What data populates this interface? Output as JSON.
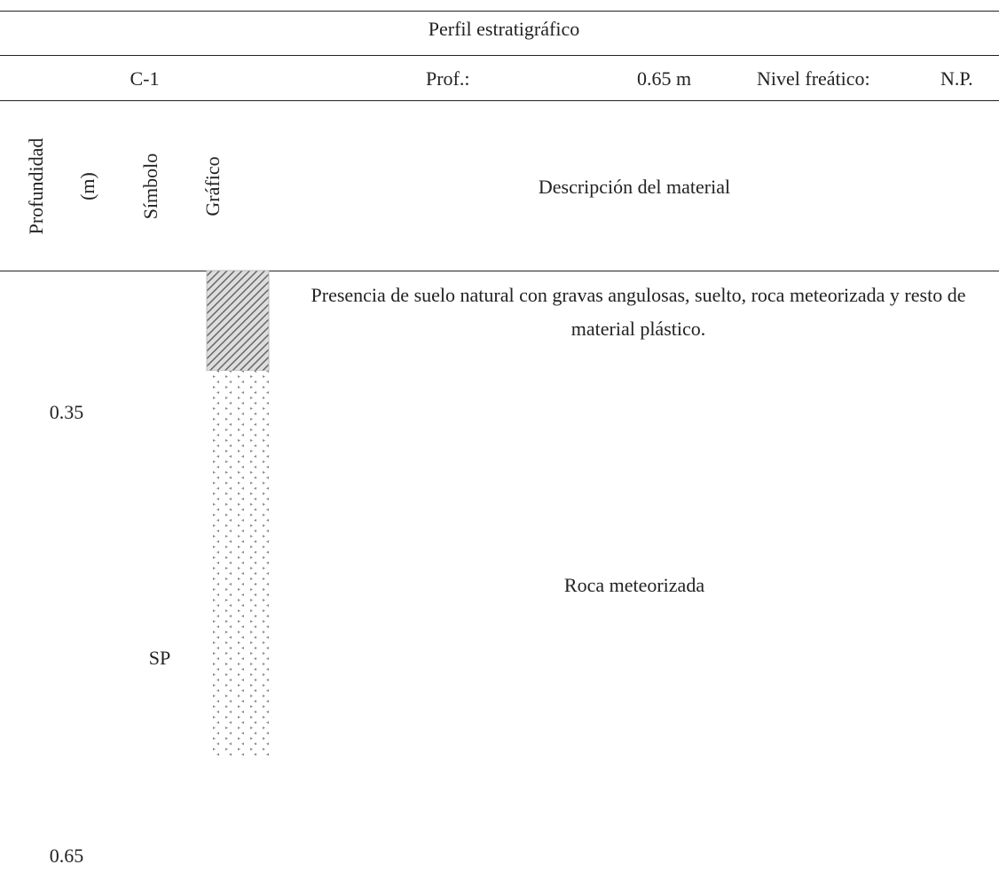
{
  "title": "Perfil estratigráfico",
  "info": {
    "boring": "C-1",
    "depth_label": "Prof.:",
    "depth_value": "0.65 m",
    "water_label": "Nivel freático:",
    "water_value": "N.P."
  },
  "headers": {
    "depth": "Profundidad (m)",
    "symbol": "Símbolo",
    "graphic": "Gráfico",
    "description": "Descripción del material"
  },
  "layers": [
    {
      "depth": "0.35",
      "description": "Presencia de suelo natural con gravas angulosas, suelto, roca meteorizada y resto de material plástico."
    },
    {
      "depth": "0.65",
      "symbol": "SP",
      "description": "Roca meteorizada"
    }
  ]
}
